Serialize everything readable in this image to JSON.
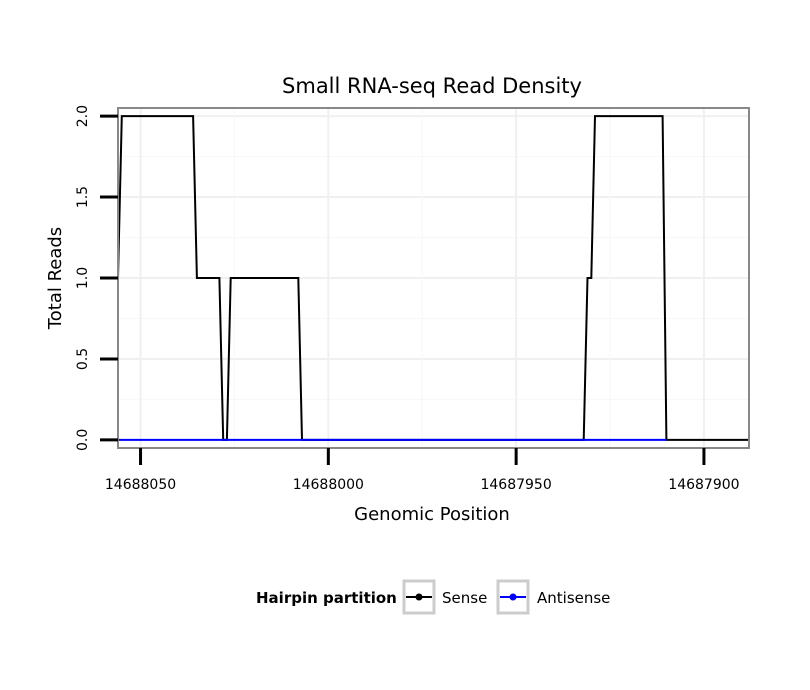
{
  "chart_data": {
    "type": "line",
    "title": "Small RNA-seq Read Density",
    "xlabel": "Genomic Position",
    "ylabel": "Total Reads",
    "xlim": [
      14688056,
      14687888
    ],
    "ylim": [
      -0.05,
      2.05
    ],
    "x_ticks": [
      {
        "value": 14688050,
        "label": "14688050"
      },
      {
        "value": 14688000,
        "label": "14688000"
      },
      {
        "value": 14687950,
        "label": "14687950"
      },
      {
        "value": 14687900,
        "label": "14687900"
      }
    ],
    "y_ticks": [
      {
        "value": 0.0,
        "label": "0.0"
      },
      {
        "value": 0.5,
        "label": "0.5"
      },
      {
        "value": 1.0,
        "label": "1.0"
      },
      {
        "value": 1.5,
        "label": "1.5"
      },
      {
        "value": 2.0,
        "label": "2.0"
      }
    ],
    "grid": true,
    "legend": {
      "title": "Hairpin partition",
      "position": "bottom"
    },
    "series": [
      {
        "name": "Sense",
        "color": "#000000",
        "x": [
          14688056,
          14688055,
          14688036,
          14688035,
          14688029,
          14688028,
          14688027,
          14688026,
          14688025,
          14688008,
          14688007,
          14687932,
          14687931,
          14687930,
          14687929,
          14687911,
          14687910,
          14687888
        ],
        "y": [
          1,
          2,
          2,
          1,
          1,
          0,
          0,
          1,
          1,
          1,
          0,
          0,
          1,
          1,
          2,
          2,
          0,
          0
        ]
      },
      {
        "name": "Antisense",
        "color": "#0000ff",
        "x": [
          14688056,
          14687910
        ],
        "y": [
          0,
          0
        ]
      }
    ]
  }
}
